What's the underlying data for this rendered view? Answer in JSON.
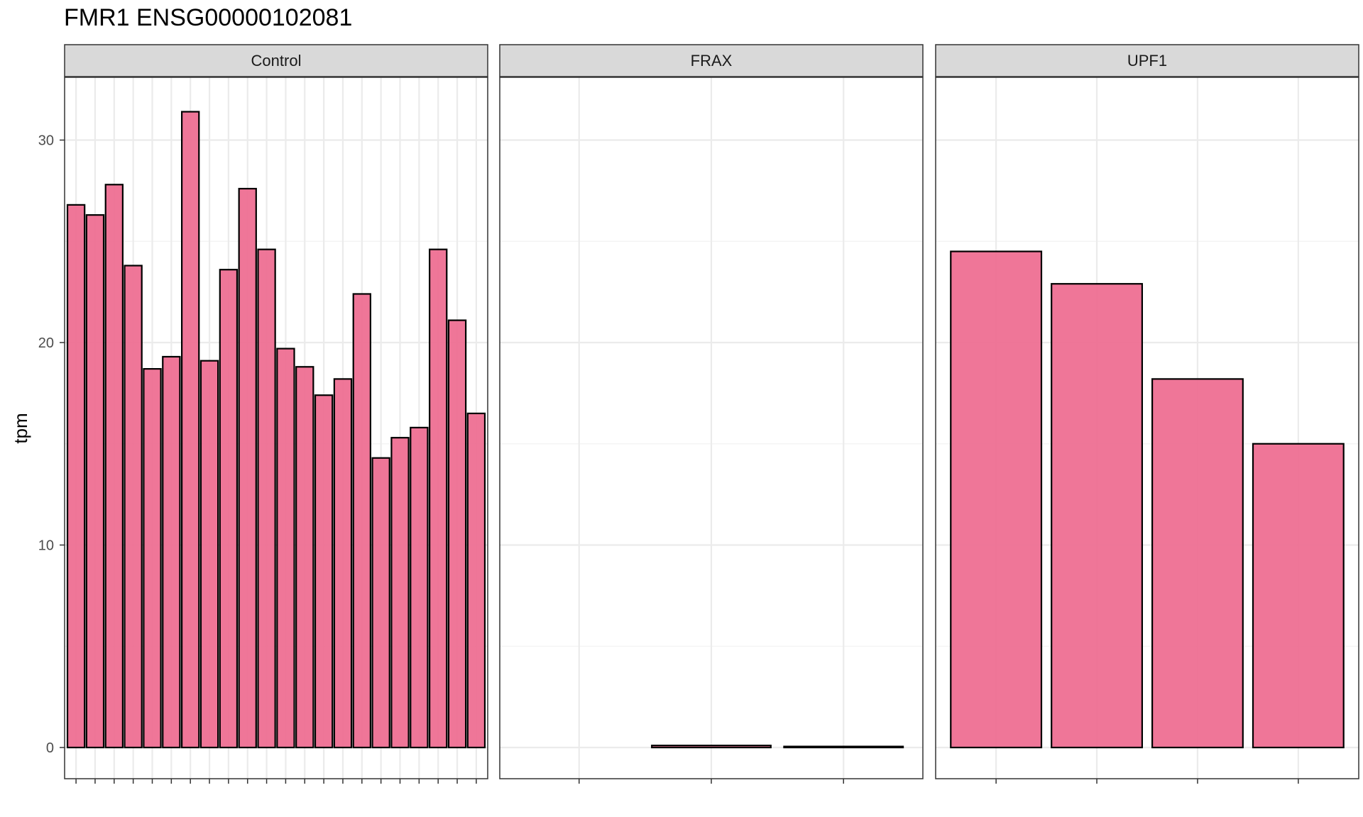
{
  "chart_data": {
    "type": "bar",
    "title": "FMR1 ENSG00000102081",
    "ylabel": "tpm",
    "xlabel": "",
    "ylim": [
      0,
      32
    ],
    "yticks": [
      0,
      10,
      20,
      30
    ],
    "fill": "#ee6a8f",
    "stroke": "#000000",
    "facets": [
      {
        "name": "Control",
        "values": [
          26.8,
          26.3,
          27.8,
          23.8,
          18.7,
          19.3,
          31.4,
          19.1,
          23.6,
          27.6,
          24.6,
          19.7,
          18.8,
          17.4,
          18.2,
          22.4,
          14.3,
          15.3,
          15.8,
          24.6,
          21.1,
          16.5
        ]
      },
      {
        "name": "FRAX",
        "values": [
          0.0,
          0.1,
          0.05
        ]
      },
      {
        "name": "UPF1",
        "values": [
          24.5,
          22.9,
          18.2,
          15.0
        ]
      }
    ]
  }
}
